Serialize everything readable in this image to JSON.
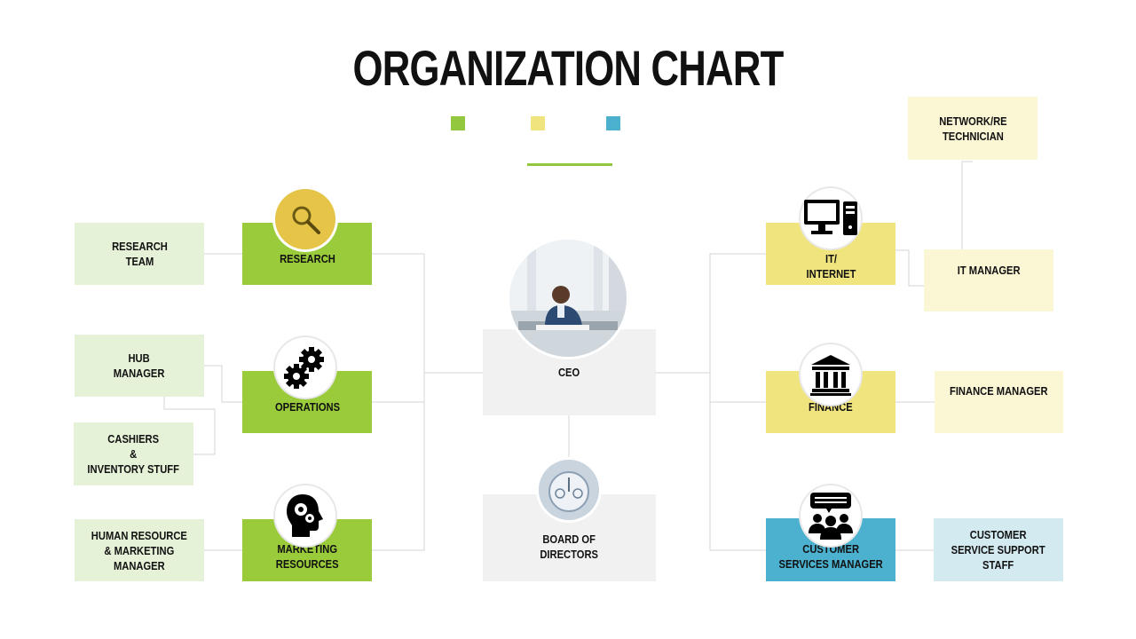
{
  "title": "ORGANIZATION CHART",
  "legend_colors": [
    "#93c83e",
    "#f0e47f",
    "#4cb1cf"
  ],
  "ceo": {
    "label": "CEO"
  },
  "board": {
    "label": "BOARD OF\nDIRECTORS"
  },
  "left": {
    "research": {
      "label": "RESEARCH",
      "icon": "magnifier-icon"
    },
    "operations": {
      "label": "OPERATIONS",
      "icon": "gears-icon"
    },
    "marketing": {
      "label": "MARKETING\nRESOURCES",
      "icon": "head-gears-icon"
    },
    "research_team": "RESEARCH\nTEAM",
    "hub_manager": "HUB\nMANAGER",
    "cashiers": "CASHIERS\n&\nINVENTORY STUFF",
    "hr_marketing": "HUMAN RESOURCE\n& MARKETING\nMANAGER"
  },
  "right": {
    "it": {
      "label": "IT/\nINTERNET",
      "icon": "computer-icon"
    },
    "finance": {
      "label": "FINANCE",
      "icon": "bank-icon"
    },
    "customer": {
      "label": "CUSTOMER\nSERVICES MANAGER",
      "icon": "customer-group-icon"
    },
    "network": "NETWORK/RE\nTECHNICIAN",
    "it_manager": "IT MANAGER",
    "finance_manager": "FINANCE MANAGER",
    "support_staff": "CUSTOMER\nSERVICE SUPPORT\nSTAFF"
  }
}
